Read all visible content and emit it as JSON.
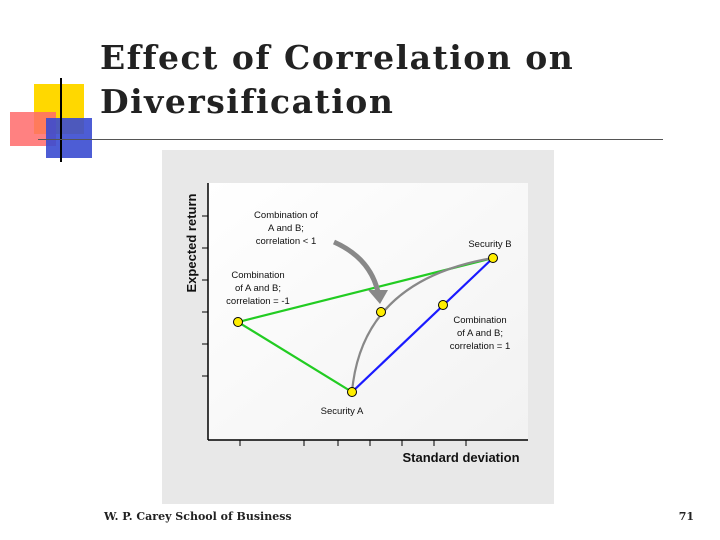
{
  "slide": {
    "title_line1": "Effect of Correlation on",
    "title_line2": "Diversification",
    "footer_left": "W. P. Carey School of Business",
    "footer_right": "71"
  },
  "diagram": {
    "y_axis_label": "Expected return",
    "x_axis_label": "Standard deviation",
    "labels": {
      "security_a": "Security A",
      "security_b": "Security B",
      "corr_lt1": [
        "Combination of",
        "A and B;",
        "correlation < 1"
      ],
      "corr_neg1": [
        "Combination",
        "of A and B;",
        "correlation = -1"
      ],
      "corr_pos1": [
        "Combination",
        "of A and B;",
        "correlation = 1"
      ]
    },
    "colors": {
      "neg1_line": "#22cc22",
      "pos1_line": "#1a1aff",
      "curve": "#888888",
      "point_fill": "#ffee00",
      "plot_bg": "#ffffff",
      "panel_bg": "#e8e8e8"
    }
  }
}
